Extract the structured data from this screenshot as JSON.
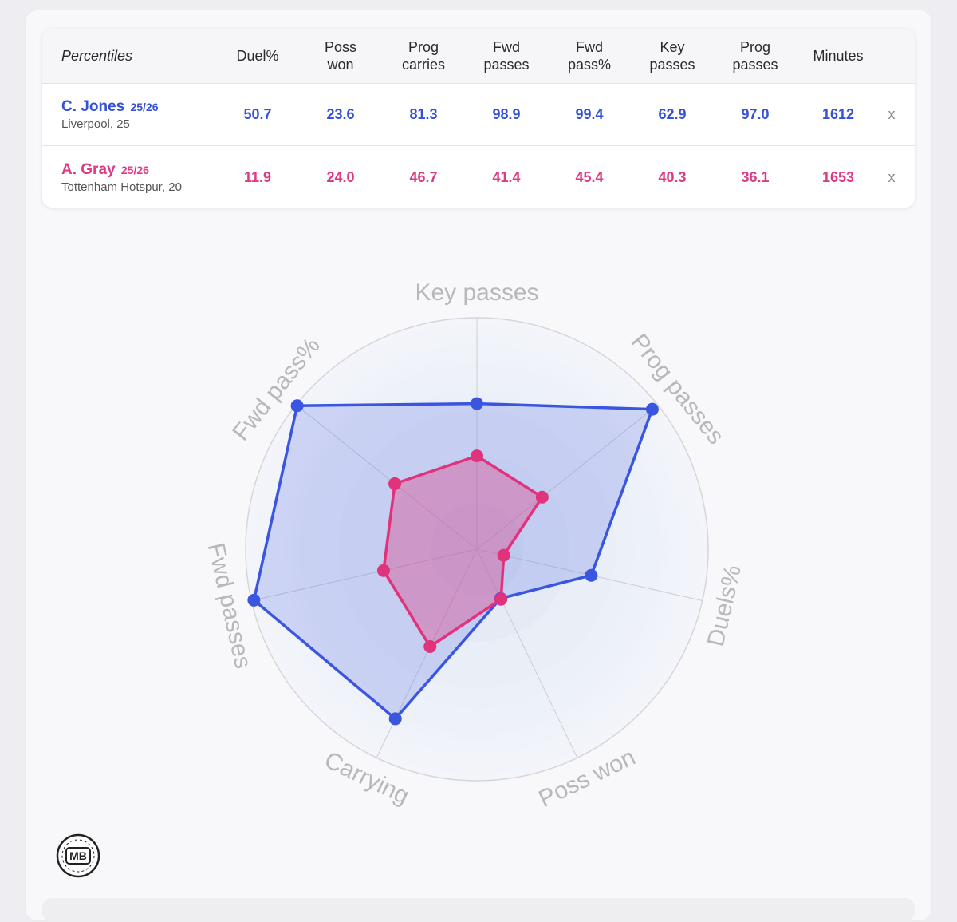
{
  "table": {
    "label": "Percentiles",
    "columns": [
      "Duel%",
      "Poss\nwon",
      "Prog\ncarries",
      "Fwd\npasses",
      "Fwd\npass%",
      "Key\npasses",
      "Prog\npasses",
      "Minutes"
    ],
    "remove_label": "x",
    "players": [
      {
        "name": "C. Jones",
        "season": "25/26",
        "team": "Liverpool, 25",
        "values": [
          "50.7",
          "23.6",
          "81.3",
          "98.9",
          "99.4",
          "62.9",
          "97.0",
          "1612"
        ]
      },
      {
        "name": "A. Gray",
        "season": "25/26",
        "team": "Tottenham Hotspur, 20",
        "values": [
          "11.9",
          "24.0",
          "46.7",
          "41.4",
          "45.4",
          "40.3",
          "36.1",
          "1653"
        ]
      }
    ]
  },
  "colors": {
    "player1": "#3a56e0",
    "player2": "#e0337c",
    "axis_label": "#b8b8bc",
    "ring": "#d6d6da"
  },
  "chart_data": {
    "type": "radar",
    "axes": [
      "Key passes",
      "Prog passes",
      "Duels%",
      "Poss won",
      "Carrying",
      "Fwd passes",
      "Fwd pass%"
    ],
    "range": [
      0,
      100
    ],
    "series": [
      {
        "name": "C. Jones",
        "values": [
          62.9,
          97.0,
          50.7,
          23.6,
          81.3,
          98.9,
          99.4
        ]
      },
      {
        "name": "A. Gray",
        "values": [
          40.3,
          36.1,
          11.9,
          24.0,
          46.7,
          41.4,
          45.4
        ]
      }
    ]
  },
  "logo": {
    "text": "MB"
  }
}
